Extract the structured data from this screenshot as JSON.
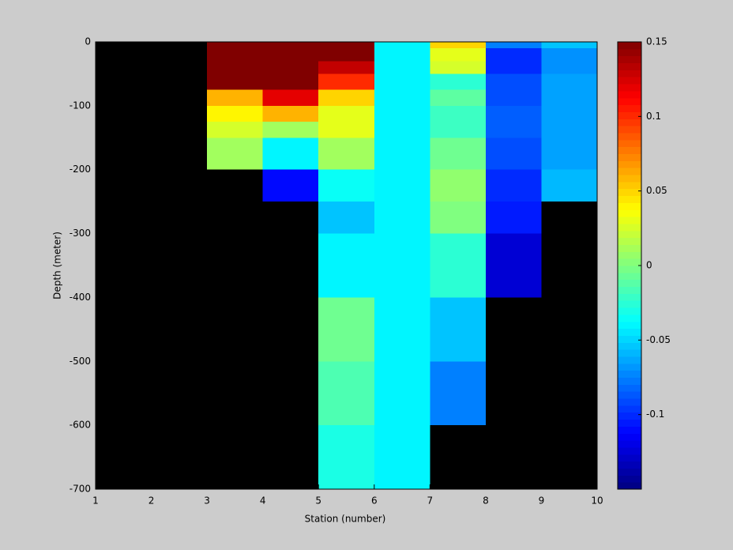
{
  "chart_data": {
    "type": "heatmap",
    "xlabel": "Station (number)",
    "ylabel": "Depth (meter)",
    "xlim": [
      1,
      10
    ],
    "ylim": [
      -700,
      0
    ],
    "xticks": [
      1,
      2,
      3,
      4,
      5,
      6,
      7,
      8,
      9,
      10
    ],
    "yticks": [
      0,
      -100,
      -200,
      -300,
      -400,
      -500,
      -600,
      -700
    ],
    "x_edges": [
      1,
      2,
      3,
      4,
      5,
      6,
      7,
      8,
      9,
      10
    ],
    "y_edges": [
      0,
      -10,
      -20,
      -30,
      -50,
      -75,
      -100,
      -125,
      -150,
      -200,
      -250,
      -300,
      -400,
      -500,
      -600,
      -700
    ],
    "colormap": "jet",
    "missing_color": "#000000",
    "clim": [
      -0.15,
      0.15
    ],
    "cticks": [
      0.15,
      0.1,
      0.05,
      0,
      -0.05,
      -0.1
    ],
    "values": [
      [
        null,
        null,
        null,
        null,
        null,
        null,
        null,
        null,
        null,
        null,
        null,
        null,
        null,
        null,
        null
      ],
      [
        null,
        null,
        null,
        null,
        null,
        null,
        null,
        null,
        null,
        null,
        null,
        null,
        null,
        null,
        null
      ],
      [
        0.15,
        0.15,
        0.15,
        0.15,
        0.15,
        0.06,
        0.04,
        0.025,
        0.01,
        null,
        null,
        null,
        null,
        null,
        null
      ],
      [
        0.15,
        0.15,
        0.15,
        0.15,
        0.15,
        0.12,
        0.06,
        0.01,
        -0.04,
        -0.11,
        null,
        null,
        null,
        null,
        null
      ],
      [
        0.15,
        0.15,
        0.15,
        0.13,
        0.1,
        0.05,
        0.03,
        0.03,
        0.01,
        -0.035,
        -0.055,
        -0.04,
        -0.005,
        -0.015,
        -0.03
      ],
      [
        -0.04,
        -0.04,
        -0.04,
        -0.04,
        -0.04,
        -0.04,
        -0.04,
        -0.04,
        -0.04,
        -0.04,
        -0.04,
        -0.04,
        -0.04,
        -0.04,
        -0.04
      ],
      [
        0.05,
        0.03,
        0.03,
        0.025,
        -0.025,
        -0.01,
        -0.02,
        -0.02,
        -0.005,
        0.005,
        0,
        -0.025,
        -0.055,
        -0.075,
        null
      ],
      [
        -0.075,
        -0.1,
        -0.1,
        -0.1,
        -0.09,
        -0.09,
        -0.085,
        -0.085,
        -0.09,
        -0.1,
        -0.105,
        -0.125,
        null,
        null,
        null
      ],
      [
        -0.055,
        -0.07,
        -0.07,
        -0.07,
        -0.065,
        -0.065,
        -0.065,
        -0.065,
        -0.065,
        -0.058,
        null,
        null,
        null,
        null,
        null
      ]
    ]
  }
}
